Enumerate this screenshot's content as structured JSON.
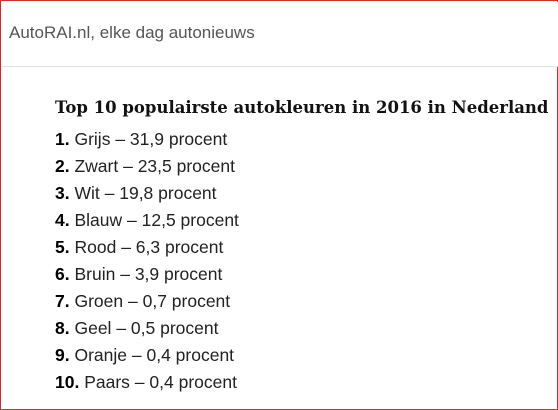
{
  "header": {
    "site_title": "AutoRAI.nl, elke dag autonieuws"
  },
  "article": {
    "title": "Top 10 populairste autokleuren in 2016 in Nederland",
    "separator": " – ",
    "items": [
      {
        "rank": "1.",
        "name": "Grijs",
        "value": "31,9 procent"
      },
      {
        "rank": "2.",
        "name": "Zwart",
        "value": "23,5 procent"
      },
      {
        "rank": "3.",
        "name": "Wit",
        "value": "19,8 procent"
      },
      {
        "rank": "4.",
        "name": "Blauw",
        "value": "12,5 procent"
      },
      {
        "rank": "5.",
        "name": "Rood",
        "value": "6,3 procent"
      },
      {
        "rank": "6.",
        "name": "Bruin",
        "value": "3,9 procent"
      },
      {
        "rank": "7.",
        "name": "Groen",
        "value": "0,7 procent"
      },
      {
        "rank": "8.",
        "name": "Geel",
        "value": "0,5 procent"
      },
      {
        "rank": "9.",
        "name": "Oranje",
        "value": "0,4 procent"
      },
      {
        "rank": "10.",
        "name": "Paars",
        "value": "0,4 procent"
      }
    ]
  }
}
